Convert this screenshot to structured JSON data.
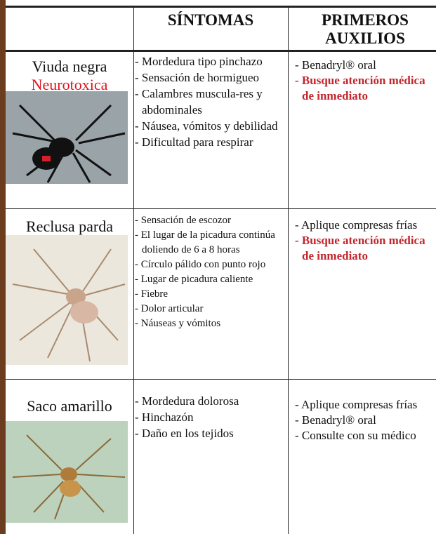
{
  "table": {
    "headers": [
      "",
      "SÍNTOMAS",
      "PRIMEROS AUXILIOS"
    ],
    "rows": [
      {
        "name": "Viuda negra",
        "subtitle": "Neurotoxica",
        "symptoms": [
          "- Mordedura tipo pinchazo",
          "- Sensación de hormigueo",
          "- Calambres muscula-res y abdominales",
          "- Náusea, vómitos y debilidad",
          "- Dificultad para respirar"
        ],
        "first_aid": [
          {
            "text": "- Benadryl® oral",
            "emphasis": false
          },
          {
            "text": "- Busque atención médica de inmediato",
            "emphasis": true
          }
        ]
      },
      {
        "name": "Reclusa parda",
        "symptoms": [
          "- Sensación de escozor",
          "- El lugar de la picadura continúa doliendo de 6 a 8 horas",
          "- Círculo pálido con punto rojo",
          "- Lugar de picadura caliente",
          "- Fiebre",
          "- Dolor articular",
          "- Náuseas y vómitos"
        ],
        "first_aid": [
          {
            "text": "- Aplique compresas frías",
            "emphasis": false
          },
          {
            "text": "- Busque atención médica de inmediato",
            "emphasis": true
          }
        ]
      },
      {
        "name": "Saco amarillo",
        "symptoms": [
          "- Mordedura dolorosa",
          "- Hinchazón",
          "- Daño en los tejidos"
        ],
        "first_aid": [
          {
            "text": "- Aplique compresas frías",
            "emphasis": false
          },
          {
            "text": "- Benadryl® oral",
            "emphasis": false
          },
          {
            "text": "- Consulte con su médico",
            "emphasis": false
          }
        ]
      }
    ]
  }
}
